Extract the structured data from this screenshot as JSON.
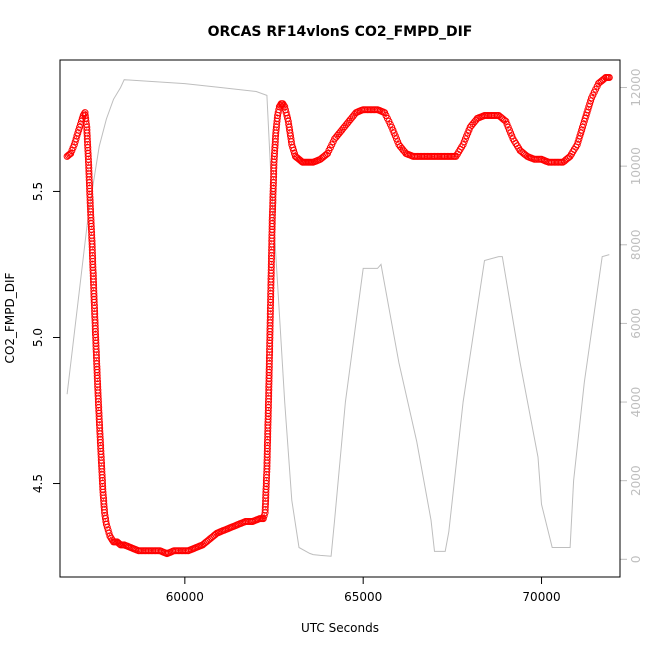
{
  "chart_data": {
    "type": "scatter",
    "title": "ORCAS RF14vlonS CO2_FMPD_DIF",
    "xlabel": "UTC Seconds",
    "ylabel": "CO2_FMPD_DIF",
    "xlim": [
      56500,
      72200
    ],
    "ylim": [
      4.18,
      5.95
    ],
    "y2lim": [
      -450,
      12700
    ],
    "x_ticks": [
      60000,
      65000,
      70000
    ],
    "x_tick_labels": [
      "60000",
      "65000",
      "70000"
    ],
    "y_ticks": [
      4.5,
      5.0,
      5.5
    ],
    "y_tick_labels": [
      "4.5",
      "5.0",
      "5.5"
    ],
    "y2_ticks": [
      0,
      2000,
      4000,
      6000,
      8000,
      10000,
      12000
    ],
    "y2_tick_labels": [
      "0",
      "2000",
      "4000",
      "6000",
      "8000",
      "10000",
      "12000"
    ],
    "colors": {
      "points": "#ff0000",
      "altitude": "#bebebe",
      "axis": "#000000",
      "right_axis": "#bebebe"
    },
    "series": [
      {
        "marker": "open-circle",
        "axis": "left",
        "x": [
          56700,
          56800,
          56900,
          57000,
          57100,
          57150,
          57200,
          57250,
          57300,
          57350,
          57400,
          57450,
          57500,
          57550,
          57600,
          57650,
          57700,
          57750,
          57800,
          57850,
          57900,
          58000,
          58100,
          58200,
          58300,
          58500,
          58700,
          58900,
          59100,
          59300,
          59500,
          59700,
          59900,
          60100,
          60300,
          60500,
          60700,
          60900,
          61100,
          61300,
          61500,
          61700,
          61900,
          62100,
          62200,
          62250,
          62300,
          62350,
          62400,
          62450,
          62500,
          62550,
          62600,
          62650,
          62700,
          62750,
          62800,
          62900,
          63000,
          63100,
          63200,
          63300,
          63400,
          63500,
          63600,
          63800,
          64000,
          64200,
          64400,
          64600,
          64800,
          65000,
          65200,
          65400,
          65600,
          65800,
          66000,
          66200,
          66400,
          66600,
          66800,
          67000,
          67200,
          67400,
          67600,
          67800,
          68000,
          68200,
          68400,
          68600,
          68800,
          69000,
          69200,
          69400,
          69600,
          69800,
          70000,
          70200,
          70400,
          70600,
          70800,
          71000,
          71200,
          71400,
          71600,
          71800,
          71900
        ],
        "y": [
          5.62,
          5.63,
          5.66,
          5.7,
          5.74,
          5.76,
          5.77,
          5.72,
          5.6,
          5.45,
          5.32,
          5.15,
          5.0,
          4.85,
          4.72,
          4.6,
          4.48,
          4.4,
          4.36,
          4.34,
          4.32,
          4.3,
          4.3,
          4.29,
          4.29,
          4.28,
          4.27,
          4.27,
          4.27,
          4.27,
          4.26,
          4.27,
          4.27,
          4.27,
          4.28,
          4.29,
          4.31,
          4.33,
          4.34,
          4.35,
          4.36,
          4.37,
          4.37,
          4.38,
          4.38,
          4.4,
          4.55,
          4.8,
          5.1,
          5.4,
          5.6,
          5.7,
          5.76,
          5.79,
          5.8,
          5.8,
          5.79,
          5.74,
          5.66,
          5.62,
          5.61,
          5.6,
          5.6,
          5.6,
          5.6,
          5.61,
          5.63,
          5.68,
          5.71,
          5.74,
          5.77,
          5.78,
          5.78,
          5.78,
          5.77,
          5.72,
          5.66,
          5.63,
          5.62,
          5.62,
          5.62,
          5.62,
          5.62,
          5.62,
          5.62,
          5.66,
          5.72,
          5.75,
          5.76,
          5.76,
          5.76,
          5.74,
          5.68,
          5.64,
          5.62,
          5.61,
          5.61,
          5.6,
          5.6,
          5.6,
          5.62,
          5.66,
          5.74,
          5.82,
          5.87,
          5.89,
          5.89
        ]
      },
      {
        "marker": "line",
        "axis": "right",
        "x": [
          56700,
          57000,
          57300,
          57600,
          57800,
          58000,
          58200,
          58300,
          60000,
          61000,
          62000,
          62300,
          62400,
          62600,
          62800,
          63000,
          63200,
          63400,
          63500,
          63600,
          63800,
          64100,
          64200,
          64500,
          65000,
          65400,
          65500,
          66000,
          66500,
          66900,
          67000,
          67300,
          67400,
          67800,
          68400,
          68800,
          68900,
          69400,
          69900,
          70000,
          70300,
          70400,
          70800,
          70900,
          71200,
          71700,
          71900
        ],
        "y": [
          4200,
          6500,
          8800,
          10500,
          11200,
          11700,
          12000,
          12200,
          12100,
          12000,
          11900,
          11800,
          10000,
          7000,
          4000,
          1500,
          300,
          200,
          150,
          120,
          100,
          80,
          1000,
          4000,
          7400,
          7400,
          7500,
          5000,
          3000,
          1000,
          200,
          200,
          700,
          4000,
          7600,
          7700,
          7700,
          5000,
          2600,
          1400,
          300,
          300,
          300,
          2000,
          4500,
          7700,
          7750
        ]
      }
    ]
  }
}
